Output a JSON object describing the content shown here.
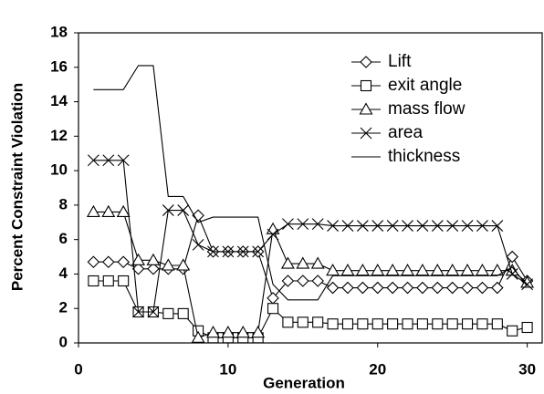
{
  "chart_data": {
    "type": "line",
    "xlabel": "Generation",
    "ylabel": "Percent Constraint Violation",
    "x": [
      1,
      2,
      3,
      4,
      5,
      6,
      7,
      8,
      9,
      10,
      11,
      12,
      13,
      14,
      15,
      16,
      17,
      18,
      19,
      20,
      21,
      22,
      23,
      24,
      25,
      26,
      27,
      28,
      29,
      30
    ],
    "series": [
      {
        "name": "Lift",
        "color": "#000000",
        "marker": "diamond",
        "values": [
          4.7,
          4.7,
          4.7,
          4.3,
          4.3,
          4.3,
          4.3,
          7.4,
          5.3,
          5.3,
          5.3,
          5.3,
          2.6,
          3.6,
          3.6,
          3.6,
          3.2,
          3.2,
          3.2,
          3.2,
          3.2,
          3.2,
          3.2,
          3.2,
          3.2,
          3.2,
          3.2,
          3.2,
          5.0,
          3.6
        ]
      },
      {
        "name": "exit angle",
        "color": "#000000",
        "marker": "square",
        "values": [
          3.6,
          3.6,
          3.6,
          1.8,
          1.8,
          1.7,
          1.7,
          0.7,
          0.3,
          0.3,
          0.3,
          0.3,
          2.0,
          1.2,
          1.2,
          1.2,
          1.1,
          1.1,
          1.1,
          1.1,
          1.1,
          1.1,
          1.1,
          1.1,
          1.1,
          1.1,
          1.1,
          1.1,
          0.7,
          0.9
        ]
      },
      {
        "name": "mass flow",
        "color": "#000000",
        "marker": "triangle",
        "values": [
          7.6,
          7.6,
          7.6,
          4.8,
          4.8,
          4.5,
          4.5,
          0.3,
          0.6,
          0.6,
          0.6,
          0.6,
          6.6,
          4.6,
          4.6,
          4.6,
          4.2,
          4.2,
          4.2,
          4.2,
          4.2,
          4.2,
          4.2,
          4.2,
          4.2,
          4.2,
          4.2,
          4.2,
          4.2,
          3.5
        ]
      },
      {
        "name": "area",
        "color": "#000000",
        "marker": "x",
        "values": [
          10.6,
          10.6,
          10.6,
          1.8,
          1.8,
          7.7,
          7.7,
          5.7,
          5.3,
          5.3,
          5.3,
          5.3,
          6.3,
          6.9,
          6.9,
          6.9,
          6.8,
          6.8,
          6.8,
          6.8,
          6.8,
          6.8,
          6.8,
          6.8,
          6.8,
          6.8,
          6.8,
          6.8,
          4.0,
          3.4
        ]
      },
      {
        "name": "thickness",
        "color": "#000000",
        "marker": "none",
        "values": [
          14.7,
          14.7,
          14.7,
          16.1,
          16.1,
          8.5,
          8.5,
          7.0,
          7.3,
          7.3,
          7.3,
          7.3,
          3.4,
          2.5,
          2.5,
          2.5,
          3.9,
          3.9,
          3.9,
          3.9,
          3.9,
          3.9,
          3.9,
          3.9,
          3.9,
          3.9,
          3.9,
          3.9,
          4.4,
          3.3
        ]
      }
    ],
    "xlim": [
      0,
      31
    ],
    "xticks": [
      0,
      10,
      20,
      30
    ],
    "ylim": [
      0,
      18
    ],
    "yticks": [
      0,
      2,
      4,
      6,
      8,
      10,
      12,
      14,
      16,
      18
    ],
    "grid": false,
    "legend": "upper right"
  }
}
